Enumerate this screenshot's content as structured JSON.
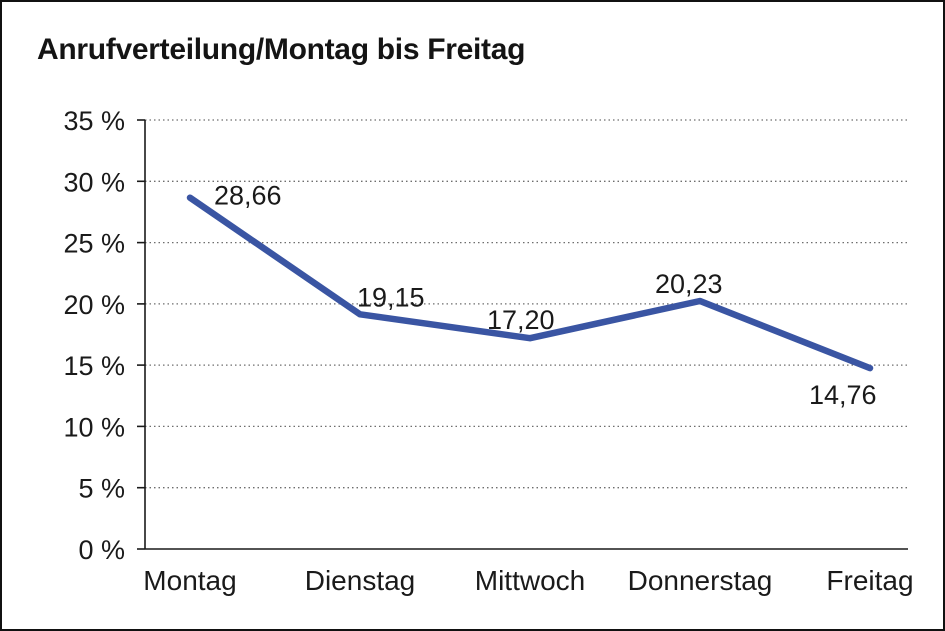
{
  "chart_data": {
    "type": "line",
    "title": "Anrufverteilung/Montag bis Freitag",
    "categories": [
      "Montag",
      "Dienstag",
      "Mittwoch",
      "Donnerstag",
      "Freitag"
    ],
    "values": [
      28.66,
      19.15,
      17.2,
      20.23,
      14.76
    ],
    "value_labels": [
      "28,66",
      "19,15",
      "17,20",
      "20,23",
      "14,76"
    ],
    "series_name": "Anrufverteilung",
    "xlabel": "",
    "ylabel": "",
    "yticks": [
      0,
      5,
      10,
      15,
      20,
      25,
      30,
      35
    ],
    "ytick_labels": [
      "0 %",
      "5 %",
      "10 %",
      "15 %",
      "20 %",
      "25 %",
      "30 %",
      "35 %"
    ],
    "ylim": [
      0,
      35
    ],
    "grid": "horizontal-dotted",
    "legend": "none",
    "line_color": "#3A55A3",
    "grid_color": "#6E6E6E",
    "axis_color": "#1A1A1A",
    "text_color": "#1A1A1A",
    "background_color": "#FFFFFF"
  }
}
